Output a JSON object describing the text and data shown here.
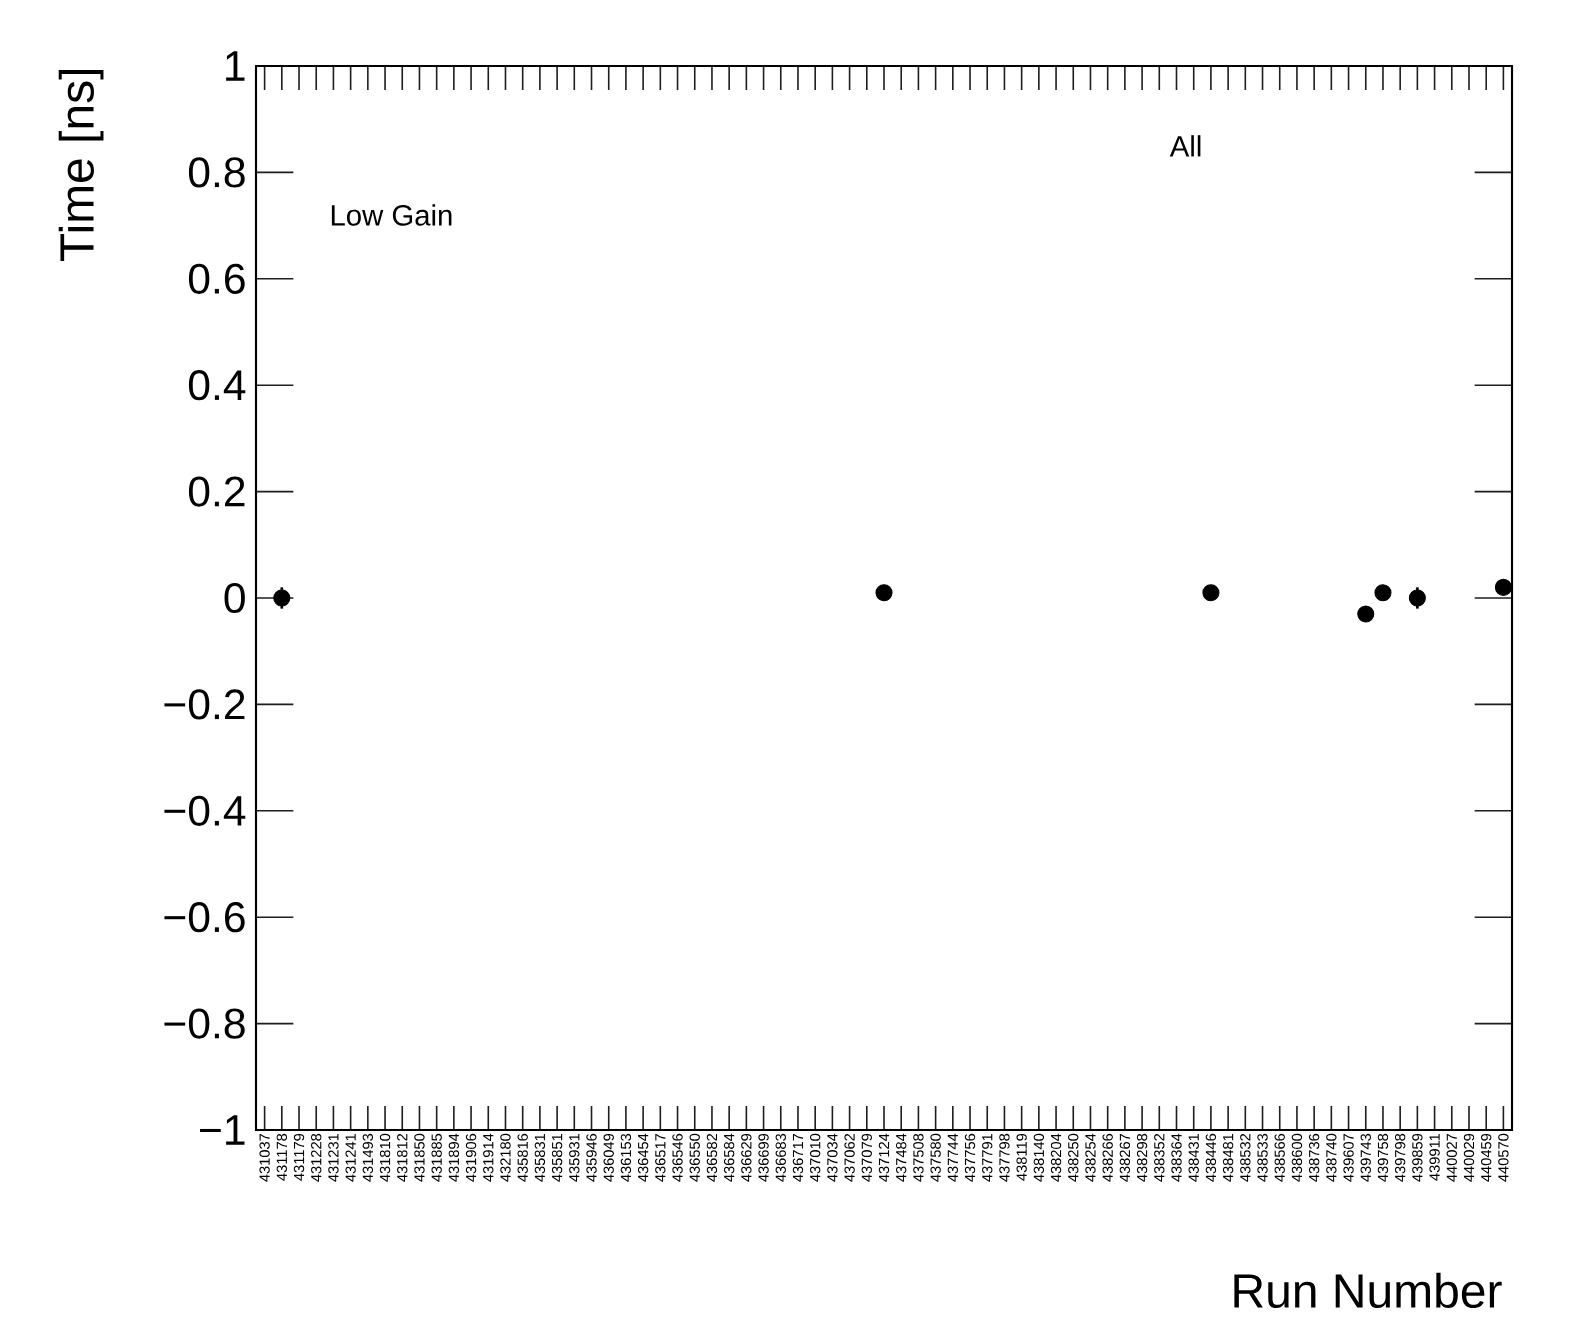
{
  "chart_data": {
    "type": "scatter",
    "xlabel": "Run Number",
    "ylabel": "Time [ns]",
    "annotations": [
      "Low Gain",
      "All"
    ],
    "categories": [
      "431037",
      "431178",
      "431179",
      "431228",
      "431231",
      "431241",
      "431493",
      "431810",
      "431812",
      "431850",
      "431885",
      "431894",
      "431906",
      "431914",
      "432180",
      "435816",
      "435831",
      "435851",
      "435931",
      "435946",
      "436049",
      "436153",
      "436454",
      "436517",
      "436546",
      "436550",
      "436582",
      "436584",
      "436629",
      "436699",
      "436683",
      "436717",
      "437010",
      "437034",
      "437062",
      "437079",
      "437124",
      "437484",
      "437508",
      "437580",
      "437744",
      "437756",
      "437791",
      "437798",
      "438119",
      "438140",
      "438204",
      "438250",
      "438254",
      "438266",
      "438267",
      "438298",
      "438352",
      "438364",
      "438431",
      "438446",
      "438481",
      "438532",
      "438533",
      "438566",
      "438600",
      "438736",
      "438740",
      "439607",
      "439743",
      "439758",
      "439798",
      "439859",
      "439911",
      "440027",
      "440029",
      "440459",
      "440570"
    ],
    "values": [
      null,
      0,
      null,
      null,
      null,
      null,
      null,
      null,
      null,
      null,
      null,
      null,
      null,
      null,
      null,
      null,
      null,
      null,
      null,
      null,
      null,
      null,
      null,
      null,
      null,
      null,
      null,
      null,
      null,
      null,
      null,
      null,
      null,
      null,
      null,
      null,
      0.01,
      null,
      null,
      null,
      null,
      null,
      null,
      null,
      null,
      null,
      null,
      null,
      null,
      null,
      null,
      null,
      null,
      null,
      null,
      0.01,
      null,
      null,
      null,
      null,
      null,
      null,
      null,
      null,
      -0.03,
      0.01,
      null,
      0,
      null,
      null,
      null,
      null,
      0.02
    ],
    "errors": [
      null,
      0.02,
      null,
      null,
      null,
      null,
      null,
      null,
      null,
      null,
      null,
      null,
      null,
      null,
      null,
      null,
      null,
      null,
      null,
      null,
      null,
      null,
      null,
      null,
      null,
      null,
      null,
      null,
      null,
      null,
      null,
      null,
      null,
      null,
      null,
      null,
      null,
      null,
      null,
      null,
      null,
      null,
      null,
      null,
      null,
      null,
      null,
      null,
      null,
      null,
      null,
      null,
      null,
      null,
      null,
      null,
      null,
      null,
      null,
      null,
      null,
      null,
      null,
      null,
      null,
      null,
      null,
      0.02,
      null,
      null,
      null,
      null,
      null
    ],
    "color": "#000000",
    "marker": "circle",
    "ylim": [
      -1,
      1
    ],
    "yticks": [
      {
        "value": -1,
        "label": "−1"
      },
      {
        "value": -0.8,
        "label": "−0.8"
      },
      {
        "value": -0.6,
        "label": "−0.6"
      },
      {
        "value": -0.4,
        "label": "−0.4"
      },
      {
        "value": -0.2,
        "label": "−0.2"
      },
      0,
      0.2,
      0.4,
      0.6,
      0.8,
      1
    ]
  }
}
